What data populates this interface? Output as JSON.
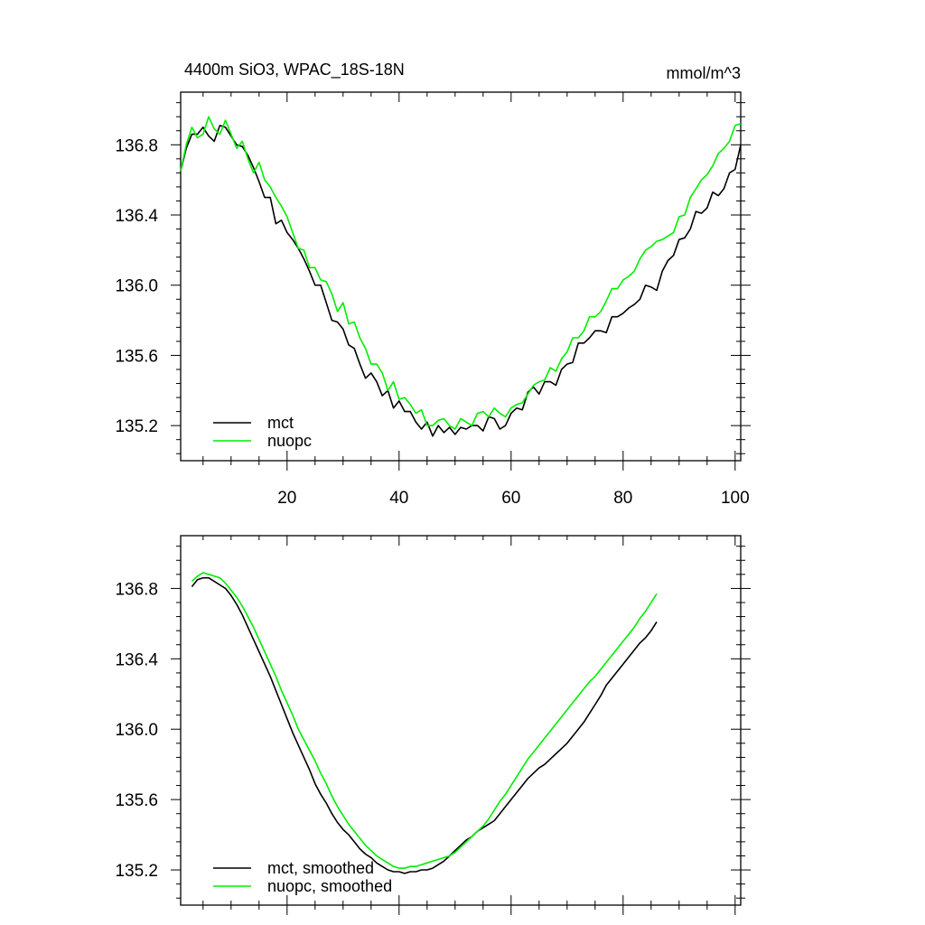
{
  "chart_data": [
    {
      "type": "line",
      "title_left": "4400m SiO3, WPAC_18S-18N",
      "title_right": "mmol/m^3",
      "xlabel": "",
      "ylabel": "",
      "xlim": [
        1,
        101
      ],
      "ylim": [
        135.0,
        137.1
      ],
      "x_ticks": [
        20,
        40,
        60,
        80,
        100
      ],
      "x_tick_labels": [
        "20",
        "40",
        "60",
        "80",
        "100"
      ],
      "y_ticks": [
        135.2,
        135.6,
        136.0,
        136.4,
        136.8
      ],
      "y_tick_labels": [
        "135.2",
        "135.6",
        "136.0",
        "136.4",
        "136.8"
      ],
      "legend_position": "bottom-left",
      "series": [
        {
          "name": "mct",
          "color": "#000000",
          "x_start": 1,
          "values": [
            136.65,
            136.78,
            136.86,
            136.86,
            136.9,
            136.85,
            136.82,
            136.91,
            136.9,
            136.85,
            136.8,
            136.79,
            136.74,
            136.67,
            136.59,
            136.5,
            136.5,
            136.35,
            136.37,
            136.3,
            136.26,
            136.21,
            136.15,
            136.08,
            136.0,
            136.0,
            135.9,
            135.8,
            135.79,
            135.75,
            135.66,
            135.64,
            135.55,
            135.47,
            135.5,
            135.45,
            135.37,
            135.4,
            135.3,
            135.34,
            135.28,
            135.28,
            135.22,
            135.18,
            135.22,
            135.14,
            135.2,
            135.16,
            135.19,
            135.15,
            135.19,
            135.18,
            135.2,
            135.2,
            135.17,
            135.25,
            135.24,
            135.18,
            135.2,
            135.27,
            135.3,
            135.29,
            135.39,
            135.42,
            135.38,
            135.45,
            135.45,
            135.43,
            135.52,
            135.55,
            135.56,
            135.67,
            135.67,
            135.7,
            135.74,
            135.74,
            135.73,
            135.82,
            135.82,
            135.84,
            135.87,
            135.89,
            135.92,
            136.0,
            135.99,
            135.97,
            136.08,
            136.14,
            136.17,
            136.26,
            136.27,
            136.32,
            136.42,
            136.41,
            136.44,
            136.53,
            136.51,
            136.55,
            136.64,
            136.66,
            136.8
          ]
        },
        {
          "name": "nuopc",
          "color": "#00ee00",
          "x_start": 1,
          "values": [
            136.65,
            136.8,
            136.9,
            136.84,
            136.86,
            136.96,
            136.89,
            136.86,
            136.94,
            136.86,
            136.78,
            136.82,
            136.72,
            136.64,
            136.7,
            136.6,
            136.56,
            136.5,
            136.45,
            136.39,
            136.3,
            136.21,
            136.2,
            136.1,
            136.1,
            136.03,
            136.02,
            135.95,
            135.85,
            135.9,
            135.78,
            135.79,
            135.7,
            135.64,
            135.55,
            135.55,
            135.5,
            135.4,
            135.45,
            135.35,
            135.36,
            135.32,
            135.27,
            135.29,
            135.2,
            135.2,
            135.23,
            135.24,
            135.2,
            135.18,
            135.24,
            135.22,
            135.2,
            135.27,
            135.28,
            135.25,
            135.3,
            135.27,
            135.25,
            135.3,
            135.32,
            135.33,
            135.38,
            135.43,
            135.45,
            135.46,
            135.53,
            135.51,
            135.58,
            135.62,
            135.7,
            135.7,
            135.74,
            135.82,
            135.82,
            135.85,
            135.91,
            135.98,
            135.98,
            136.03,
            136.05,
            136.08,
            136.15,
            136.2,
            136.22,
            136.25,
            136.26,
            136.28,
            136.3,
            136.39,
            136.4,
            136.5,
            136.55,
            136.6,
            136.63,
            136.68,
            136.75,
            136.78,
            136.82,
            136.91,
            136.92
          ]
        }
      ]
    },
    {
      "type": "line",
      "title_left": "",
      "title_right": "",
      "xlabel": "",
      "ylabel": "",
      "xlim": [
        1,
        101
      ],
      "ylim": [
        135.0,
        137.1
      ],
      "x_ticks": [
        20,
        40,
        60,
        80,
        100
      ],
      "x_tick_labels": [],
      "y_ticks": [
        135.2,
        135.6,
        136.0,
        136.4,
        136.8
      ],
      "y_tick_labels": [
        "135.2",
        "135.6",
        "136.0",
        "136.4",
        "136.8"
      ],
      "legend_position": "bottom-left",
      "series": [
        {
          "name": "mct, smoothed",
          "color": "#000000",
          "x_start": 3,
          "values": [
            136.81,
            136.85,
            136.86,
            136.86,
            136.84,
            136.82,
            136.8,
            136.76,
            136.71,
            136.65,
            136.58,
            136.51,
            136.44,
            136.37,
            136.3,
            136.22,
            136.14,
            136.06,
            135.98,
            135.91,
            135.84,
            135.77,
            135.69,
            135.63,
            135.58,
            135.52,
            135.47,
            135.43,
            135.4,
            135.36,
            135.32,
            135.29,
            135.27,
            135.24,
            135.22,
            135.2,
            135.19,
            135.19,
            135.18,
            135.19,
            135.19,
            135.2,
            135.2,
            135.21,
            135.23,
            135.25,
            135.28,
            135.31,
            135.34,
            135.37,
            135.39,
            135.42,
            135.44,
            135.46,
            135.48,
            135.52,
            135.56,
            135.6,
            135.64,
            135.68,
            135.72,
            135.75,
            135.78,
            135.8,
            135.83,
            135.86,
            135.89,
            135.92,
            135.96,
            136.0,
            136.04,
            136.09,
            136.14,
            136.19,
            136.25,
            136.29,
            136.33,
            136.37,
            136.41,
            136.45,
            136.49,
            136.52,
            136.56,
            136.61
          ]
        },
        {
          "name": "nuopc, smoothed",
          "color": "#00ee00",
          "x_start": 3,
          "values": [
            136.84,
            136.87,
            136.89,
            136.88,
            136.87,
            136.86,
            136.83,
            136.79,
            136.75,
            136.7,
            136.64,
            136.58,
            136.51,
            136.44,
            136.37,
            136.3,
            136.22,
            136.15,
            136.08,
            136.0,
            135.94,
            135.88,
            135.82,
            135.75,
            135.69,
            135.62,
            135.56,
            135.51,
            135.46,
            135.42,
            135.38,
            135.34,
            135.31,
            135.28,
            135.26,
            135.24,
            135.22,
            135.21,
            135.21,
            135.22,
            135.22,
            135.23,
            135.24,
            135.25,
            135.26,
            135.27,
            135.28,
            135.3,
            135.33,
            135.36,
            135.39,
            135.42,
            135.45,
            135.49,
            135.54,
            135.59,
            135.63,
            135.68,
            135.73,
            135.78,
            135.83,
            135.87,
            135.91,
            135.95,
            135.99,
            136.03,
            136.07,
            136.11,
            136.15,
            136.19,
            136.23,
            136.27,
            136.3,
            136.34,
            136.38,
            136.42,
            136.46,
            136.5,
            136.54,
            136.58,
            136.63,
            136.67,
            136.72,
            136.77
          ]
        }
      ]
    }
  ]
}
